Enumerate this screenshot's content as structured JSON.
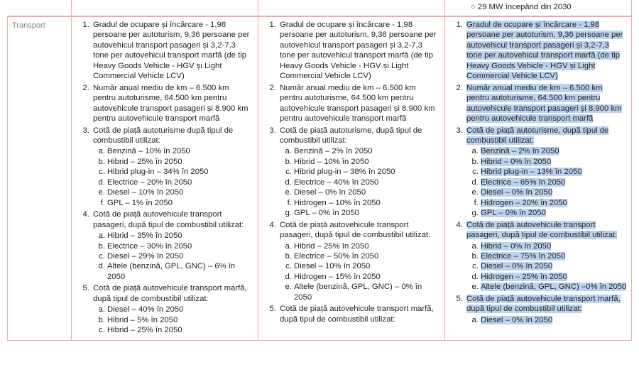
{
  "row_label": "Transport",
  "pre_header_item": "29 MW începând din 2030",
  "columns": {
    "a": {
      "items": [
        {
          "text": "Gradul de ocupare și încărcare - 1,98 persoane per autoturism, 9,36 persoane per autovehicul transport pasageri și 3,2-7,3 tone per autovehicul transport marfă (de tip Heavy Goods Vehicle - HGV și Light Commercial Vehicle LCV)"
        },
        {
          "text": "Număr anual mediu de km – 6.500 km pentru autoturisme, 64.500 km pentru autovehicule transport pasageri și 8.900 km pentru autovehicule transport marfă"
        },
        {
          "text": "Cotă de piață autoturisme după tipul de combustibil utilizat:",
          "sub": [
            "Benzină – 10% în 2050",
            "Hibrid – 25% în 2050",
            "Hibrid plug-in – 34% în 2050",
            "Electrice – 20% în 2050",
            "Diesel – 10% în 2050",
            "GPL – 1% în 2050"
          ]
        },
        {
          "text": "Cotă de piață autovehicule transport pasageri, după tipul de combustibil utilizat:",
          "sub": [
            "Hibrid – 35% în 2050",
            "Electrice – 30% în 2050",
            "Diesel – 29% în 2050",
            "Altele  (benzină, GPL, GNC) – 6% în 2050"
          ]
        },
        {
          "text": "Cotă de piață autovehicule transport marfă, după tipul de combustibil utilizat:",
          "sub": [
            "Diesel – 40% în 2050",
            "Hibrid – 5% în 2050",
            "Hibrid – 25% în 2050"
          ]
        }
      ]
    },
    "b": {
      "items": [
        {
          "text": "Gradul de ocupare și încărcare - 1,98 persoane per autoturism, 9,36 persoane per autovehicul transport pasageri și 3,2-7,3 tone per autovehicul transport marfă (de tip Heavy Goods Vehicle - HGV și Light Commercial Vehicle LCV)"
        },
        {
          "text": "Număr anual mediu de km – 6.500 km pentru autoturisme, 64.500 km pentru autovehicule transport pasageri și 8.900 km pentru autovehicule transport marfă"
        },
        {
          "text": "Cotă de piață autoturisme, după tipul de combustibil utilizat:",
          "sub": [
            "Benzină – 2% în 2050",
            "Hibrid – 10% în 2050",
            "Hibrid plug-in – 38% în 2050",
            "Electrice – 40% în 2050",
            "Diesel – 0% în 2050",
            "Hidrogen – 10% în 2050",
            "GPL – 0% în 2050"
          ]
        },
        {
          "text": "Cotă de piață autovehicule transport pasageri, după tipul de combustibil utilizat:",
          "sub": [
            "Hibrid – 25% în 2050",
            "Electrice – 50% în 2050",
            "Diesel – 10% în 2050",
            "Hidrogen – 15% în 2050",
            "Altele (benzină, GPL, GNC) – 0% în 2050"
          ]
        },
        {
          "text": "Cotă de piață autovehicule transport marfă, după tipul de combustibil utilizat:"
        }
      ]
    },
    "c": {
      "highlighted": true,
      "items": [
        {
          "text": "Gradul de ocupare și încărcare - 1,98 persoane per autoturism, 9,36 persoane per autovehicul transport pasageri și 3,2-7,3 tone per autovehicul transport marfă (de tip Heavy Goods Vehicle - HGV și Light Commercial Vehicle LCV)"
        },
        {
          "text": "Număr anual mediu de km – 6.500 km pentru autoturisme, 64.500 km pentru autovehicule transport pasageri și 8.900 km pentru autovehicule transport marfă"
        },
        {
          "text": "Cotă de piață autoturisme, după tipul de combustibil utilizat:",
          "sub": [
            "Benzină – 2% în 2050",
            "Hibrid – 0% în 2050",
            "Hibrid plug-in – 13% în 2050",
            "Electrice – 65% în 2050",
            "Diesel – 0% în 2050",
            "Hidrogen – 20% în 2050",
            "GPL – 0% în 2050"
          ]
        },
        {
          "text": "Cotă de piață autovehicule transport pasageri, după tipul de combustibil utilizat:",
          "sub": [
            "Hibrid – 0% în 2050",
            "Electrice – 75% în 2050",
            "Diesel – 0% în 2050",
            "Hidrogen – 25% în 2050",
            "Altele (benzină, GPL, GNC) –0% în 2050"
          ]
        },
        {
          "text": "Cotă de piață autovehicule transport marfă, după tipul de combustibil utilizat:",
          "sub": [
            "Diesel – 0% în 2050"
          ]
        }
      ]
    }
  }
}
